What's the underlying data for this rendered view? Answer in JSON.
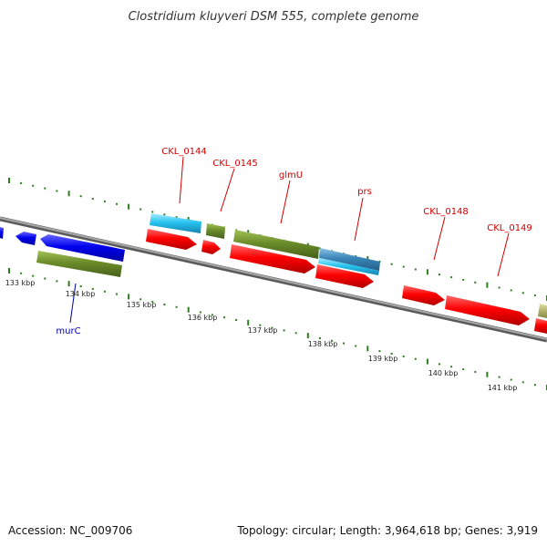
{
  "title": "Clostridium kluyveri DSM 555, complete genome",
  "accession": "Accession: NC_009706",
  "topology": "Topology: circular; Length: 3,964,618 bp; Genes: 3,919",
  "colors": {
    "backbone": "#808080",
    "tick_marks": "#2e7d1e",
    "red_gene": "#ff0000",
    "cyan_gene": "#29c4f0",
    "olive_gene": "#6b8c2a",
    "blue_gene": "#0000ee",
    "steelblue_gene": "#3a86b8",
    "khaki_gene": "#b8b870",
    "red_label": "#d00000",
    "blue_label": "#0000aa"
  },
  "scale_labels": [
    "133 kbp",
    "134 kbp",
    "135 kbp",
    "136 kbp",
    "137 kbp",
    "138 kbp",
    "139 kbp",
    "140 kbp",
    "141 kbp"
  ],
  "gene_labels": [
    {
      "text": "CKL_0144",
      "color": "red"
    },
    {
      "text": "CKL_0145",
      "color": "red"
    },
    {
      "text": "glmU",
      "color": "red"
    },
    {
      "text": "prs",
      "color": "red"
    },
    {
      "text": "CKL_0148",
      "color": "red"
    },
    {
      "text": "CKL_0149",
      "color": "red"
    },
    {
      "text": "murC",
      "color": "blue"
    }
  ]
}
